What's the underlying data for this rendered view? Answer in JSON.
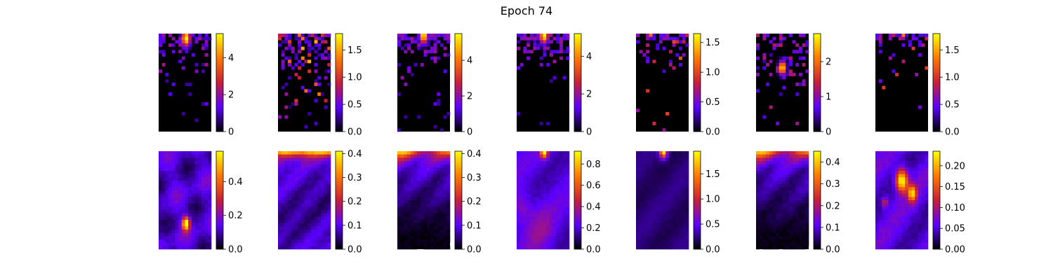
{
  "chart_data": {
    "type": "heatmap",
    "title": "Epoch 74",
    "colormap": "gnuplot",
    "colors": {
      "background": "#ffffff",
      "cmap_stops": [
        "#000000",
        "#5c00ff",
        "#c81f3a",
        "#ff7a00",
        "#ffff00"
      ]
    },
    "layout": "2 rows x 7 columns of heatmaps, each with its own vertical colorbar on the right",
    "rows": [
      {
        "description": "sparse point-like activations concentrated near the top",
        "panels": [
          {
            "vmin": 0,
            "vmax": 5.3,
            "ticks": [
              {
                "v": 0,
                "label": "0"
              },
              {
                "v": 2,
                "label": "2"
              },
              {
                "v": 4,
                "label": "4"
              }
            ],
            "pattern": "sparse_top",
            "hotspot": [
              0.52,
              0.05
            ],
            "hot_value": 5.3
          },
          {
            "vmin": 0,
            "vmax": 1.8,
            "ticks": [
              {
                "v": 0,
                "label": "0.0"
              },
              {
                "v": 0.5,
                "label": "0.5"
              },
              {
                "v": 1.0,
                "label": "1.0"
              },
              {
                "v": 1.5,
                "label": "1.5"
              }
            ],
            "pattern": "sparse_top_dense",
            "hotspot": [
              0.2,
              0.2
            ],
            "hot_value": 1.8
          },
          {
            "vmin": 0,
            "vmax": 5.5,
            "ticks": [
              {
                "v": 0,
                "label": "0"
              },
              {
                "v": 2,
                "label": "2"
              },
              {
                "v": 4,
                "label": "4"
              }
            ],
            "pattern": "sparse_top",
            "hotspot": [
              0.5,
              0.02
            ],
            "hot_value": 5.5
          },
          {
            "vmin": 0,
            "vmax": 5.2,
            "ticks": [
              {
                "v": 0,
                "label": "0"
              },
              {
                "v": 2,
                "label": "2"
              },
              {
                "v": 4,
                "label": "4"
              }
            ],
            "pattern": "sparse_top",
            "hotspot": [
              0.52,
              0.02
            ],
            "hot_value": 5.2
          },
          {
            "vmin": 0,
            "vmax": 1.65,
            "ticks": [
              {
                "v": 0,
                "label": "0.0"
              },
              {
                "v": 0.5,
                "label": "0.5"
              },
              {
                "v": 1.0,
                "label": "1.0"
              },
              {
                "v": 1.5,
                "label": "1.5"
              }
            ],
            "pattern": "sparse_top_thin",
            "hotspot": [
              0.3,
              0.01
            ],
            "hot_value": 1.65
          },
          {
            "vmin": 0,
            "vmax": 2.8,
            "ticks": [
              {
                "v": 0,
                "label": "0"
              },
              {
                "v": 1,
                "label": "1"
              },
              {
                "v": 2,
                "label": "2"
              }
            ],
            "pattern": "sparse_mid",
            "hotspot": [
              0.5,
              0.35
            ],
            "hot_value": 2.8
          },
          {
            "vmin": 0,
            "vmax": 1.8,
            "ticks": [
              {
                "v": 0,
                "label": "0.0"
              },
              {
                "v": 0.5,
                "label": "0.5"
              },
              {
                "v": 1.0,
                "label": "1.0"
              },
              {
                "v": 1.5,
                "label": "1.5"
              }
            ],
            "pattern": "sparse_top_thin",
            "hotspot": [
              0.55,
              0.02
            ],
            "hot_value": 1.8
          }
        ]
      },
      {
        "description": "smooth diffuse activation maps",
        "panels": [
          {
            "vmin": 0,
            "vmax": 0.58,
            "ticks": [
              {
                "v": 0,
                "label": "0.0"
              },
              {
                "v": 0.2,
                "label": "0.2"
              },
              {
                "v": 0.4,
                "label": "0.4"
              }
            ],
            "pattern": "smooth_spot",
            "hotspot": [
              0.52,
              0.74
            ],
            "hot_value": 0.58
          },
          {
            "vmin": 0,
            "vmax": 0.41,
            "ticks": [
              {
                "v": 0,
                "label": "0.0"
              },
              {
                "v": 0.1,
                "label": "0.1"
              },
              {
                "v": 0.2,
                "label": "0.2"
              },
              {
                "v": 0.3,
                "label": "0.3"
              },
              {
                "v": 0.4,
                "label": "0.4"
              }
            ],
            "pattern": "smooth_topband",
            "hotspot": [
              0.5,
              0.0
            ],
            "hot_value": 0.41
          },
          {
            "vmin": 0,
            "vmax": 0.41,
            "ticks": [
              {
                "v": 0,
                "label": "0.0"
              },
              {
                "v": 0.1,
                "label": "0.1"
              },
              {
                "v": 0.2,
                "label": "0.2"
              },
              {
                "v": 0.3,
                "label": "0.3"
              },
              {
                "v": 0.4,
                "label": "0.4"
              }
            ],
            "pattern": "smooth_topband_fade",
            "hotspot": [
              0.45,
              0.0
            ],
            "hot_value": 0.41
          },
          {
            "vmin": 0,
            "vmax": 0.92,
            "ticks": [
              {
                "v": 0,
                "label": "0.0"
              },
              {
                "v": 0.2,
                "label": "0.2"
              },
              {
                "v": 0.4,
                "label": "0.4"
              },
              {
                "v": 0.6,
                "label": "0.6"
              },
              {
                "v": 0.8,
                "label": "0.8"
              }
            ],
            "pattern": "smooth_topdot",
            "hotspot": [
              0.52,
              0.0
            ],
            "hot_value": 0.92
          },
          {
            "vmin": 0,
            "vmax": 1.95,
            "ticks": [
              {
                "v": 0,
                "label": "0.0"
              },
              {
                "v": 0.5,
                "label": "0.5"
              },
              {
                "v": 1.0,
                "label": "1.0"
              },
              {
                "v": 1.5,
                "label": "1.5"
              }
            ],
            "pattern": "smooth_topdot_dim",
            "hotspot": [
              0.52,
              0.0
            ],
            "hot_value": 1.95
          },
          {
            "vmin": 0,
            "vmax": 0.45,
            "ticks": [
              {
                "v": 0,
                "label": "0.0"
              },
              {
                "v": 0.1,
                "label": "0.1"
              },
              {
                "v": 0.2,
                "label": "0.2"
              },
              {
                "v": 0.3,
                "label": "0.3"
              },
              {
                "v": 0.4,
                "label": "0.4"
              }
            ],
            "pattern": "smooth_topband_fade",
            "hotspot": [
              0.4,
              0.0
            ],
            "hot_value": 0.45
          },
          {
            "vmin": 0,
            "vmax": 0.235,
            "ticks": [
              {
                "v": 0,
                "label": "0.00"
              },
              {
                "v": 0.05,
                "label": "0.05"
              },
              {
                "v": 0.1,
                "label": "0.10"
              },
              {
                "v": 0.15,
                "label": "0.15"
              },
              {
                "v": 0.2,
                "label": "0.20"
              }
            ],
            "pattern": "smooth_double",
            "hotspot": [
              0.55,
              0.32
            ],
            "hot_value": 0.235
          }
        ]
      }
    ]
  }
}
